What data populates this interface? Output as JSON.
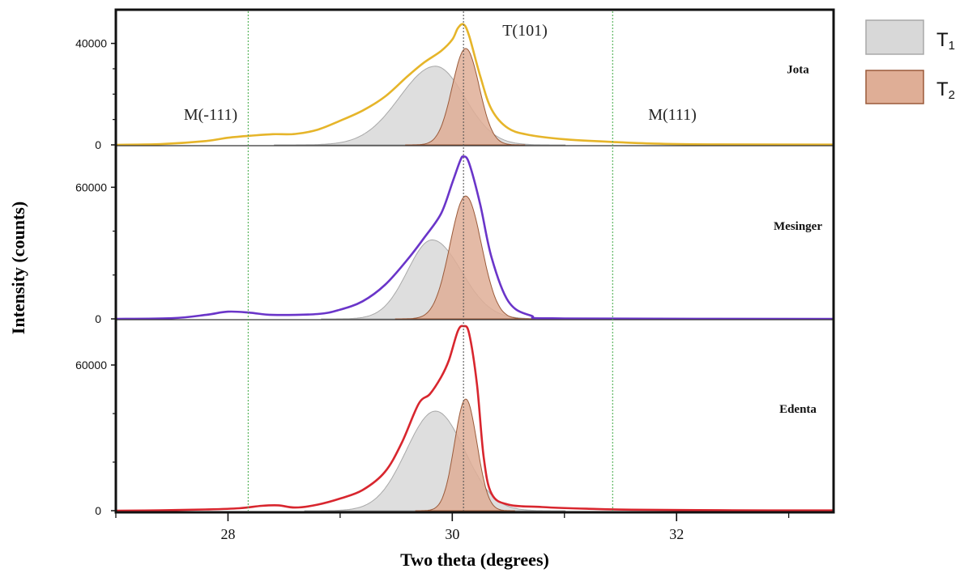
{
  "chart_data": {
    "type": "area",
    "xlabel": "Two theta (degrees)",
    "ylabel": "Intensity (counts)",
    "xlim": [
      27.0,
      33.4
    ],
    "x_ticks": [
      "28",
      "30",
      "32"
    ],
    "x_minor_ticks": [
      27,
      29,
      31,
      33
    ],
    "legend": {
      "placement": "right",
      "items": [
        {
          "label": "T",
          "subscript": "1",
          "fill": "#d8d8d8",
          "stroke": "#a8a8a8"
        },
        {
          "label": "T",
          "subscript": "2",
          "fill": "#dfae96",
          "stroke": "#9a5a3a"
        }
      ]
    },
    "reference_lines": [
      {
        "label": "M(-111)",
        "x": 28.18,
        "color": "#4caf50",
        "style": "dotted"
      },
      {
        "label": "T(101)",
        "x": 30.1,
        "color": "#555555",
        "style": "dotted"
      },
      {
        "label": "M(111)",
        "x": 31.43,
        "color": "#4caf50",
        "style": "dotted"
      }
    ],
    "panels": [
      {
        "name": "Jota",
        "line_color": "#e6b52a",
        "y_ticks": [
          {
            "label": "0",
            "value": 0
          },
          {
            "label": "40000",
            "value": 40000
          }
        ],
        "ylim": [
          0,
          52000
        ],
        "minor_y": [
          10000,
          20000,
          30000
        ],
        "T1": {
          "center": 29.85,
          "amp": 31000,
          "sigma_left": 0.32,
          "sigma_right": 0.26
        },
        "T2": {
          "center": 30.12,
          "amp": 38000,
          "sigma": 0.12
        },
        "line_points": [
          [
            27.0,
            0
          ],
          [
            27.4,
            300
          ],
          [
            27.8,
            1500
          ],
          [
            28.0,
            2800
          ],
          [
            28.2,
            3600
          ],
          [
            28.4,
            4200
          ],
          [
            28.6,
            4300
          ],
          [
            28.8,
            6000
          ],
          [
            29.0,
            9500
          ],
          [
            29.2,
            13500
          ],
          [
            29.4,
            19000
          ],
          [
            29.6,
            27000
          ],
          [
            29.75,
            32500
          ],
          [
            29.9,
            37000
          ],
          [
            30.0,
            41500
          ],
          [
            30.05,
            46000
          ],
          [
            30.1,
            47500
          ],
          [
            30.15,
            43000
          ],
          [
            30.25,
            27000
          ],
          [
            30.35,
            14000
          ],
          [
            30.5,
            6500
          ],
          [
            30.7,
            3800
          ],
          [
            31.0,
            2200
          ],
          [
            31.4,
            1200
          ],
          [
            31.8,
            500
          ],
          [
            32.3,
            200
          ],
          [
            33.4,
            100
          ]
        ]
      },
      {
        "name": "Mesinger",
        "line_color": "#6a35c9",
        "y_ticks": [
          {
            "label": "0",
            "value": 0
          },
          {
            "label": "60000",
            "value": 60000
          }
        ],
        "ylim": [
          0,
          76000
        ],
        "minor_y": [
          20000,
          40000
        ],
        "T1": {
          "center": 29.82,
          "amp": 36000,
          "sigma_left": 0.22,
          "sigma_right": 0.26
        },
        "T2": {
          "center": 30.12,
          "amp": 56000,
          "sigma": 0.14
        },
        "line_points": [
          [
            27.0,
            0
          ],
          [
            27.5,
            300
          ],
          [
            27.8,
            1800
          ],
          [
            28.0,
            3300
          ],
          [
            28.2,
            2800
          ],
          [
            28.4,
            1800
          ],
          [
            28.8,
            2200
          ],
          [
            29.0,
            4200
          ],
          [
            29.2,
            8000
          ],
          [
            29.4,
            15500
          ],
          [
            29.6,
            27000
          ],
          [
            29.75,
            37000
          ],
          [
            29.9,
            48000
          ],
          [
            30.0,
            62000
          ],
          [
            30.07,
            72000
          ],
          [
            30.1,
            74000
          ],
          [
            30.15,
            71000
          ],
          [
            30.25,
            52000
          ],
          [
            30.35,
            28000
          ],
          [
            30.5,
            8000
          ],
          [
            30.7,
            1500
          ],
          [
            31.0,
            200
          ],
          [
            33.4,
            0
          ]
        ]
      },
      {
        "name": "Edenta",
        "line_color": "#d8262e",
        "y_ticks": [
          {
            "label": "0",
            "value": 0
          },
          {
            "label": "60000",
            "value": 60000
          }
        ],
        "ylim": [
          0,
          76000
        ],
        "minor_y": [
          20000,
          40000
        ],
        "T1": {
          "center": 29.85,
          "amp": 41000,
          "sigma_left": 0.26,
          "sigma_right": 0.26
        },
        "T2": {
          "center": 30.12,
          "amp": 46000,
          "sigma": 0.1
        },
        "line_points": [
          [
            27.0,
            0
          ],
          [
            27.4,
            150
          ],
          [
            27.8,
            500
          ],
          [
            28.1,
            1000
          ],
          [
            28.3,
            2000
          ],
          [
            28.45,
            2200
          ],
          [
            28.6,
            1300
          ],
          [
            28.8,
            2500
          ],
          [
            29.0,
            5000
          ],
          [
            29.2,
            8500
          ],
          [
            29.4,
            16000
          ],
          [
            29.55,
            28000
          ],
          [
            29.7,
            44000
          ],
          [
            29.8,
            48000
          ],
          [
            29.9,
            55000
          ],
          [
            29.97,
            62000
          ],
          [
            30.05,
            74000
          ],
          [
            30.1,
            76000
          ],
          [
            30.15,
            73000
          ],
          [
            30.22,
            52000
          ],
          [
            30.28,
            22000
          ],
          [
            30.35,
            7000
          ],
          [
            30.5,
            2500
          ],
          [
            30.8,
            1500
          ],
          [
            31.2,
            800
          ],
          [
            31.6,
            400
          ],
          [
            32.5,
            150
          ],
          [
            33.4,
            100
          ]
        ]
      }
    ]
  }
}
